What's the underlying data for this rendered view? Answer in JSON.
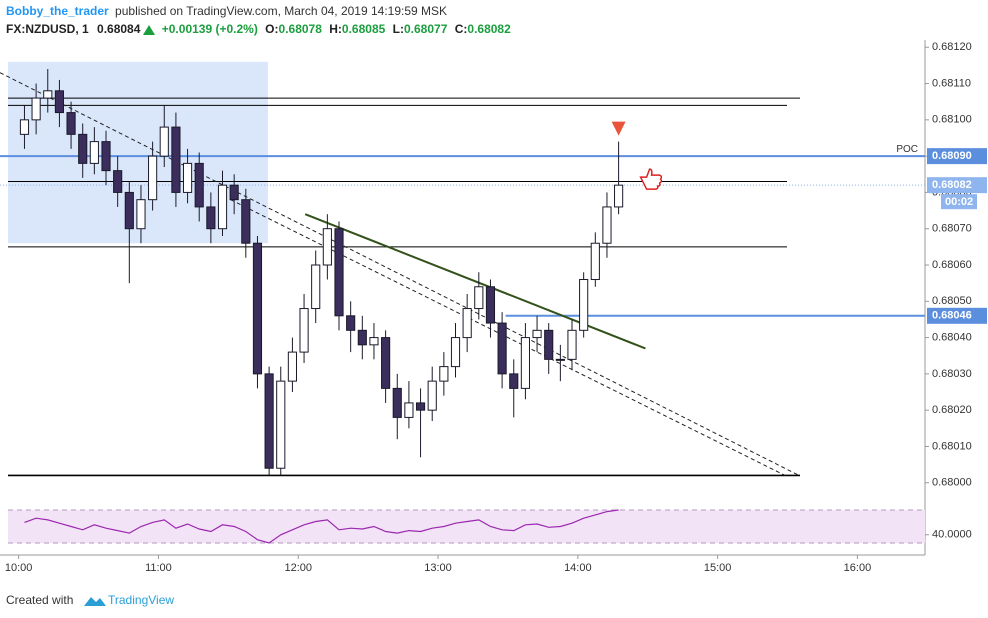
{
  "header": {
    "author": "Bobby_the_trader",
    "published": "published on TradingView.com, March 04, 2019 14:19:59 MSK",
    "symbol": "FX:NZDUSD, 1",
    "last": "0.68084",
    "change": "+0.00139 (+0.2%)",
    "ohlc": [
      {
        "key": "O:",
        "value": "0.68078"
      },
      {
        "key": "H:",
        "value": "0.68085"
      },
      {
        "key": "L:",
        "value": "0.68077"
      },
      {
        "key": "C:",
        "value": "0.68082"
      }
    ]
  },
  "chart_data": {
    "type": "candlestick",
    "categories": [
      "10:00",
      "10:05",
      "10:10",
      "10:15",
      "10:20",
      "10:25",
      "10:30",
      "10:35",
      "10:40",
      "10:45",
      "10:50",
      "10:55",
      "11:00",
      "11:05",
      "11:10",
      "11:15",
      "11:20",
      "11:25",
      "11:30",
      "11:35",
      "11:40",
      "11:45",
      "11:50",
      "11:55",
      "12:00",
      "12:05",
      "12:10",
      "12:15",
      "12:20",
      "12:25",
      "12:30",
      "12:35",
      "12:40",
      "12:45",
      "12:50",
      "12:55",
      "13:00",
      "13:05",
      "13:10",
      "13:15",
      "13:20",
      "13:25",
      "13:30",
      "13:35",
      "13:40",
      "13:45",
      "13:50",
      "13:55",
      "14:00",
      "14:05",
      "14:10",
      "14:15"
    ],
    "open": [
      0.68096,
      0.681,
      0.68106,
      0.68108,
      0.68102,
      0.68096,
      0.68088,
      0.68094,
      0.68086,
      0.6808,
      0.6807,
      0.68078,
      0.6809,
      0.68098,
      0.6808,
      0.68088,
      0.68076,
      0.6807,
      0.68082,
      0.68078,
      0.68066,
      0.6803,
      0.68004,
      0.68028,
      0.68036,
      0.68048,
      0.6806,
      0.6807,
      0.68046,
      0.68042,
      0.68038,
      0.6804,
      0.68026,
      0.68018,
      0.68022,
      0.6802,
      0.68028,
      0.68032,
      0.6804,
      0.68048,
      0.68054,
      0.68044,
      0.6803,
      0.68026,
      0.6804,
      0.68042,
      0.68034,
      0.68034,
      0.68042,
      0.68056,
      0.68066,
      0.68076
    ],
    "high": [
      0.68104,
      0.6811,
      0.68114,
      0.68111,
      0.68105,
      0.68099,
      0.68098,
      0.68097,
      0.6809,
      0.68083,
      0.68082,
      0.68094,
      0.68104,
      0.68102,
      0.68092,
      0.68091,
      0.6808,
      0.68086,
      0.68085,
      0.68081,
      0.68068,
      0.68032,
      0.68032,
      0.6804,
      0.68052,
      0.68064,
      0.68074,
      0.68072,
      0.6805,
      0.68046,
      0.68044,
      0.68042,
      0.6803,
      0.68028,
      0.68026,
      0.68032,
      0.68036,
      0.68044,
      0.68052,
      0.68058,
      0.68056,
      0.68047,
      0.68034,
      0.68044,
      0.68046,
      0.68044,
      0.68038,
      0.68045,
      0.68058,
      0.68069,
      0.6808,
      0.68094
    ],
    "low": [
      0.68092,
      0.68096,
      0.68102,
      0.68098,
      0.68092,
      0.68084,
      0.68085,
      0.68082,
      0.68076,
      0.68055,
      0.68066,
      0.68075,
      0.68087,
      0.68076,
      0.68077,
      0.68072,
      0.68066,
      0.68068,
      0.68074,
      0.68062,
      0.68026,
      0.68002,
      0.68002,
      0.68025,
      0.68033,
      0.68044,
      0.68056,
      0.68042,
      0.68036,
      0.68034,
      0.68034,
      0.68022,
      0.68012,
      0.68015,
      0.68007,
      0.68017,
      0.68024,
      0.68029,
      0.68036,
      0.68045,
      0.6804,
      0.68026,
      0.68018,
      0.68023,
      0.68036,
      0.6803,
      0.68028,
      0.68031,
      0.6804,
      0.68054,
      0.68062,
      0.68074
    ],
    "close": [
      0.681,
      0.68106,
      0.68108,
      0.68102,
      0.68096,
      0.68088,
      0.68094,
      0.68086,
      0.6808,
      0.6807,
      0.68078,
      0.6809,
      0.68098,
      0.6808,
      0.68088,
      0.68076,
      0.6807,
      0.68082,
      0.68078,
      0.68066,
      0.6803,
      0.68004,
      0.68028,
      0.68036,
      0.68048,
      0.6806,
      0.6807,
      0.68046,
      0.68042,
      0.68038,
      0.6804,
      0.68026,
      0.68018,
      0.68022,
      0.6802,
      0.68028,
      0.68032,
      0.6804,
      0.68048,
      0.68054,
      0.68044,
      0.6803,
      0.68026,
      0.6804,
      0.68042,
      0.68034,
      0.68034,
      0.68042,
      0.68056,
      0.68066,
      0.68076,
      0.68082
    ],
    "up_color": "#ffffff",
    "down_color": "#3b2d5c",
    "ylim": [
      0.67998,
      0.68122
    ],
    "yticks": [
      {
        "value": 0.68,
        "label": "0.68000"
      },
      {
        "value": 0.6801,
        "label": "0.68010"
      },
      {
        "value": 0.6802,
        "label": "0.68020"
      },
      {
        "value": 0.6803,
        "label": "0.68030"
      },
      {
        "value": 0.6804,
        "label": "0.68040"
      },
      {
        "value": 0.6805,
        "label": "0.68050"
      },
      {
        "value": 0.6806,
        "label": "0.68060"
      },
      {
        "value": 0.6807,
        "label": "0.68070"
      },
      {
        "value": 0.6808,
        "label": "0.68080"
      },
      {
        "value": 0.6809,
        "label": "0.68090"
      },
      {
        "value": 0.681,
        "label": "0.68100"
      },
      {
        "value": 0.6811,
        "label": "0.68110"
      },
      {
        "value": 0.6812,
        "label": "0.68120"
      }
    ],
    "xlim": [
      "09:52",
      "16:29"
    ],
    "xticks": [
      "10:00",
      "11:00",
      "12:00",
      "13:00",
      "14:00",
      "15:00",
      "16:00"
    ],
    "levels": [
      0.68106,
      0.68104,
      0.68083,
      0.68065,
      0.68002
    ],
    "level_color": "#000000",
    "poc": {
      "label": "POC",
      "value": 0.6809,
      "price_label": "0.68090",
      "color": "#5b8fde"
    },
    "level_blue": {
      "value": 0.68046,
      "price_label": "0.68046",
      "start": "13:29",
      "color": "#5b8fde"
    },
    "last_price": {
      "value": 0.68082,
      "label": "0.68082",
      "countdown": "00:02",
      "color": "#8fb5ee"
    },
    "zone": {
      "start": "09:52",
      "end": "11:47",
      "top": 0.68116,
      "bottom": 0.68066,
      "color": "#d4e3fa"
    },
    "trendlines": [
      {
        "from": [
          "12:03",
          0.68074
        ],
        "to": [
          "14:29",
          0.68037
        ],
        "color": "#33521c",
        "dash": false
      },
      {
        "from": [
          "09:52",
          0.68113
        ],
        "to": [
          "15:35",
          0.68002
        ],
        "color": "#222222",
        "dash": true
      },
      {
        "from": [
          "11:31",
          0.68078
        ],
        "to": [
          "15:29",
          0.68002
        ],
        "color": "#222222",
        "dash": true
      }
    ],
    "rsi": {
      "values": [
        55,
        60,
        58,
        54,
        50,
        46,
        52,
        48,
        45,
        42,
        50,
        55,
        58,
        48,
        53,
        47,
        44,
        52,
        50,
        44,
        34,
        30,
        40,
        46,
        52,
        56,
        58,
        46,
        48,
        47,
        50,
        44,
        42,
        45,
        44,
        48,
        50,
        54,
        56,
        58,
        50,
        46,
        45,
        52,
        53,
        49,
        50,
        54,
        60,
        64,
        68,
        70
      ],
      "color": "#9c27b0",
      "ylim": [
        24,
        76
      ],
      "band": [
        30,
        70
      ],
      "yticks": [
        {
          "value": 40,
          "label": "40.0000"
        }
      ]
    }
  },
  "footer": {
    "created": "Created with",
    "brand": "TradingView"
  }
}
